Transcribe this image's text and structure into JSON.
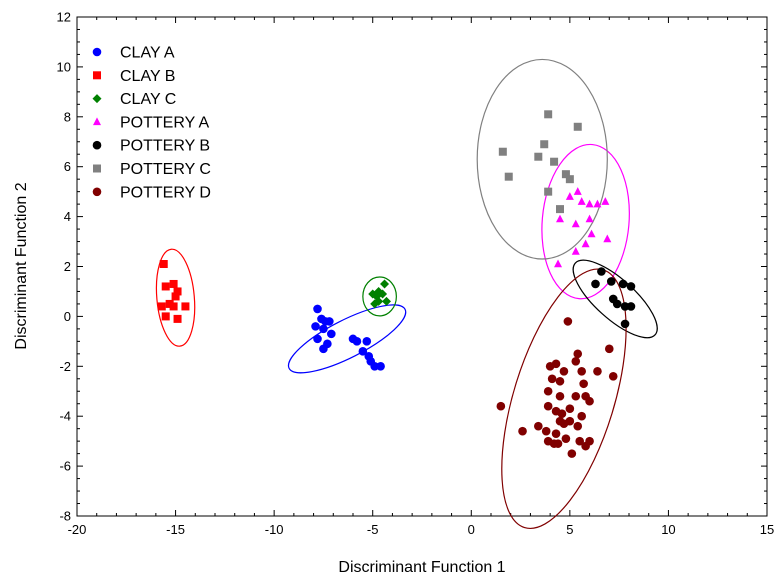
{
  "chart_data": {
    "type": "scatter",
    "title": "",
    "xlabel": "Discriminant Function 1",
    "ylabel": "Discriminant Function 2",
    "xlim": [
      -20,
      15
    ],
    "ylim": [
      -8,
      12
    ],
    "xticks": [
      -20,
      -15,
      -10,
      -5,
      0,
      5,
      10,
      15
    ],
    "yticks": [
      -8,
      -6,
      -4,
      -2,
      0,
      2,
      4,
      6,
      8,
      10,
      12
    ],
    "grid": false,
    "legend_position": "top-left",
    "series": [
      {
        "name": "CLAY A",
        "marker": "circle",
        "color": "#0000ff",
        "points": [
          [
            -7.8,
            0.3
          ],
          [
            -7.6,
            -0.1
          ],
          [
            -7.4,
            -0.2
          ],
          [
            -7.2,
            -0.2
          ],
          [
            -7.9,
            -0.4
          ],
          [
            -7.5,
            -0.5
          ],
          [
            -7.8,
            -0.9
          ],
          [
            -7.1,
            -0.7
          ],
          [
            -7.5,
            -1.3
          ],
          [
            -7.3,
            -1.1
          ],
          [
            -6.0,
            -0.9
          ],
          [
            -5.8,
            -1.0
          ],
          [
            -5.5,
            -1.4
          ],
          [
            -5.3,
            -1.0
          ],
          [
            -5.2,
            -1.6
          ],
          [
            -5.1,
            -1.8
          ],
          [
            -4.9,
            -2.0
          ],
          [
            -4.6,
            -2.0
          ]
        ],
        "ellipse": {
          "cx": -6.3,
          "cy": -0.9,
          "rx": 3.3,
          "ry": 0.75,
          "angle_deg": -27
        }
      },
      {
        "name": "CLAY B",
        "marker": "square",
        "color": "#ff0000",
        "points": [
          [
            -15.6,
            2.1
          ],
          [
            -15.5,
            1.2
          ],
          [
            -15.1,
            1.3
          ],
          [
            -14.9,
            1.0
          ],
          [
            -15.0,
            0.8
          ],
          [
            -15.3,
            0.5
          ],
          [
            -15.7,
            0.4
          ],
          [
            -14.5,
            0.4
          ],
          [
            -15.1,
            0.4
          ],
          [
            -15.5,
            0.0
          ],
          [
            -14.9,
            -0.1
          ]
        ],
        "ellipse": {
          "cx": -15.0,
          "cy": 0.75,
          "rx": 0.95,
          "ry": 1.95,
          "angle_deg": -5
        }
      },
      {
        "name": "CLAY C",
        "marker": "diamond",
        "color": "#008000",
        "points": [
          [
            -4.7,
            1.0
          ],
          [
            -4.4,
            1.3
          ],
          [
            -4.5,
            0.9
          ],
          [
            -4.8,
            0.8
          ],
          [
            -5.0,
            0.9
          ],
          [
            -4.7,
            0.6
          ],
          [
            -4.9,
            0.5
          ],
          [
            -4.3,
            0.6
          ]
        ],
        "ellipse": {
          "cx": -4.65,
          "cy": 0.8,
          "rx": 0.85,
          "ry": 0.78,
          "angle_deg": 0
        }
      },
      {
        "name": "POTTERY A",
        "marker": "triangle",
        "color": "#ff00ff",
        "points": [
          [
            5.0,
            4.8
          ],
          [
            5.4,
            5.0
          ],
          [
            5.6,
            4.6
          ],
          [
            6.0,
            4.5
          ],
          [
            6.4,
            4.5
          ],
          [
            6.8,
            4.6
          ],
          [
            4.5,
            3.9
          ],
          [
            5.3,
            3.7
          ],
          [
            6.0,
            3.9
          ],
          [
            6.1,
            3.3
          ],
          [
            6.9,
            3.1
          ],
          [
            5.8,
            2.9
          ],
          [
            5.3,
            2.6
          ],
          [
            4.4,
            2.1
          ]
        ],
        "ellipse": {
          "cx": 5.8,
          "cy": 3.8,
          "rx": 2.2,
          "ry": 3.1,
          "angle_deg": 5
        }
      },
      {
        "name": "POTTERY B",
        "marker": "circle",
        "color": "#000000",
        "points": [
          [
            6.6,
            1.8
          ],
          [
            7.1,
            1.4
          ],
          [
            6.3,
            1.3
          ],
          [
            7.7,
            1.3
          ],
          [
            8.1,
            1.2
          ],
          [
            7.2,
            0.7
          ],
          [
            7.4,
            0.5
          ],
          [
            7.8,
            0.4
          ],
          [
            8.1,
            0.4
          ],
          [
            7.8,
            -0.3
          ]
        ],
        "ellipse": {
          "cx": 7.3,
          "cy": 0.7,
          "rx": 1.0,
          "ry": 2.15,
          "angle_deg": -48
        }
      },
      {
        "name": "POTTERY C",
        "marker": "square",
        "color": "#808080",
        "points": [
          [
            3.9,
            8.1
          ],
          [
            5.4,
            7.6
          ],
          [
            3.7,
            6.9
          ],
          [
            1.6,
            6.6
          ],
          [
            3.4,
            6.4
          ],
          [
            4.2,
            6.2
          ],
          [
            1.9,
            5.6
          ],
          [
            4.8,
            5.7
          ],
          [
            5.0,
            5.5
          ],
          [
            3.9,
            5.0
          ],
          [
            4.5,
            4.3
          ]
        ],
        "ellipse": {
          "cx": 3.6,
          "cy": 6.3,
          "rx": 3.3,
          "ry": 4.0,
          "angle_deg": 0
        }
      },
      {
        "name": "POTTERY D",
        "marker": "circle",
        "color": "#800000",
        "points": [
          [
            4.9,
            -0.2
          ],
          [
            7.0,
            -1.3
          ],
          [
            5.4,
            -1.5
          ],
          [
            5.3,
            -1.8
          ],
          [
            4.3,
            -1.9
          ],
          [
            4.0,
            -2.0
          ],
          [
            5.6,
            -2.2
          ],
          [
            6.4,
            -2.2
          ],
          [
            4.7,
            -2.2
          ],
          [
            7.2,
            -2.4
          ],
          [
            4.1,
            -2.5
          ],
          [
            4.5,
            -2.6
          ],
          [
            5.7,
            -2.7
          ],
          [
            3.9,
            -3.0
          ],
          [
            5.3,
            -3.2
          ],
          [
            5.8,
            -3.2
          ],
          [
            4.5,
            -3.2
          ],
          [
            6.0,
            -3.4
          ],
          [
            1.5,
            -3.6
          ],
          [
            3.9,
            -3.6
          ],
          [
            5.0,
            -3.7
          ],
          [
            4.3,
            -3.8
          ],
          [
            4.6,
            -3.9
          ],
          [
            5.6,
            -4.0
          ],
          [
            4.5,
            -4.2
          ],
          [
            5.0,
            -4.2
          ],
          [
            4.7,
            -4.3
          ],
          [
            3.4,
            -4.4
          ],
          [
            5.4,
            -4.4
          ],
          [
            2.6,
            -4.6
          ],
          [
            3.8,
            -4.6
          ],
          [
            4.3,
            -4.7
          ],
          [
            4.8,
            -4.9
          ],
          [
            3.9,
            -5.0
          ],
          [
            5.5,
            -5.0
          ],
          [
            6.0,
            -5.0
          ],
          [
            4.2,
            -5.1
          ],
          [
            4.4,
            -5.1
          ],
          [
            5.8,
            -5.2
          ],
          [
            5.1,
            -5.5
          ]
        ],
        "ellipse": {
          "cx": 4.7,
          "cy": -3.3,
          "rx": 2.55,
          "ry": 5.4,
          "angle_deg": 17
        }
      }
    ]
  }
}
